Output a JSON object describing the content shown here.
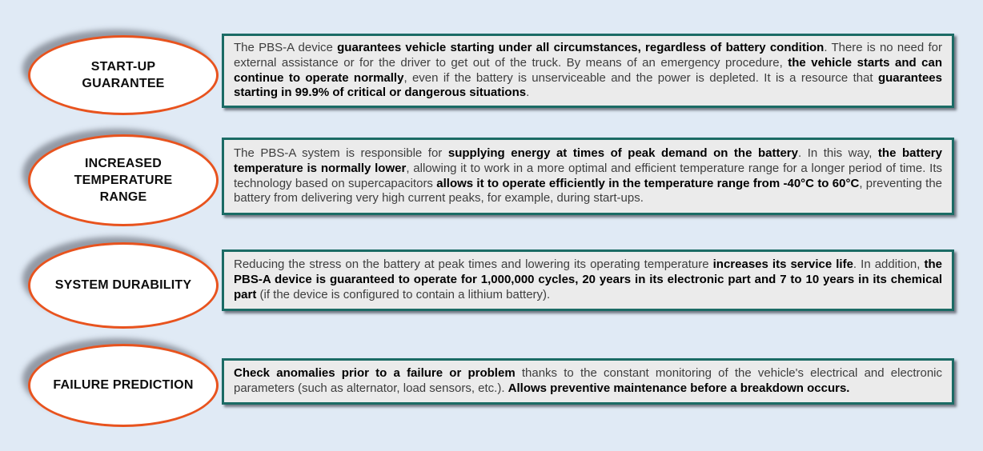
{
  "page": {
    "background_color": "#e0eaf5",
    "accent_orange": "#e8531e",
    "accent_teal": "#1b6b65",
    "box_fill": "#ebebeb",
    "ellipse_fill": "#ffffff"
  },
  "features": [
    {
      "title": "START-UP GUARANTEE",
      "description": [
        {
          "text": "The PBS-A device ",
          "bold": false
        },
        {
          "text": "guarantees vehicle starting under all circumstances, regardless of battery condition",
          "bold": true
        },
        {
          "text": ". There is no need for external assistance or for the driver to get out of the truck. By means of an emergency procedure, ",
          "bold": false
        },
        {
          "text": "the vehicle starts and can continue to operate normally",
          "bold": true
        },
        {
          "text": ", even if the battery is unserviceable and the power is depleted. It is a resource that ",
          "bold": false
        },
        {
          "text": "guarantees starting in 99.9% of critical or dangerous situations",
          "bold": true
        },
        {
          "text": ".",
          "bold": false
        }
      ]
    },
    {
      "title": "INCREASED TEMPERATURE RANGE",
      "description": [
        {
          "text": "The PBS-A system is responsible for ",
          "bold": false
        },
        {
          "text": "supplying energy at times of peak demand on the battery",
          "bold": true
        },
        {
          "text": ". In this way, ",
          "bold": false
        },
        {
          "text": "the battery temperature is normally lower",
          "bold": true
        },
        {
          "text": ", allowing it to work in a more optimal and efficient temperature range for a longer period of time. Its technology based on supercapacitors ",
          "bold": false
        },
        {
          "text": "allows it to operate efficiently in the temperature range from -40°C to 60°C",
          "bold": true
        },
        {
          "text": ", preventing the battery from delivering very high current peaks, for example, during start-ups.",
          "bold": false
        }
      ]
    },
    {
      "title": "SYSTEM DURABILITY",
      "description": [
        {
          "text": "Reducing the stress on the battery at peak times and lowering its operating temperature ",
          "bold": false
        },
        {
          "text": "increases its service life",
          "bold": true
        },
        {
          "text": ". In addition, ",
          "bold": false
        },
        {
          "text": "the PBS-A device is guaranteed to operate for 1,000,000 cycles, 20 years in its electronic part and 7 to 10 years in its chemical part",
          "bold": true
        },
        {
          "text": " (if the device is configured to contain a lithium battery).",
          "bold": false
        }
      ]
    },
    {
      "title": "FAILURE PREDICTION",
      "description": [
        {
          "text": "Check anomalies prior to a failure or problem",
          "bold": true
        },
        {
          "text": " thanks to the constant monitoring of the vehicle's electrical and electronic parameters (such as alternator, load sensors, etc.). ",
          "bold": false
        },
        {
          "text": "Allows preventive maintenance before a breakdown occurs.",
          "bold": true
        }
      ]
    }
  ]
}
